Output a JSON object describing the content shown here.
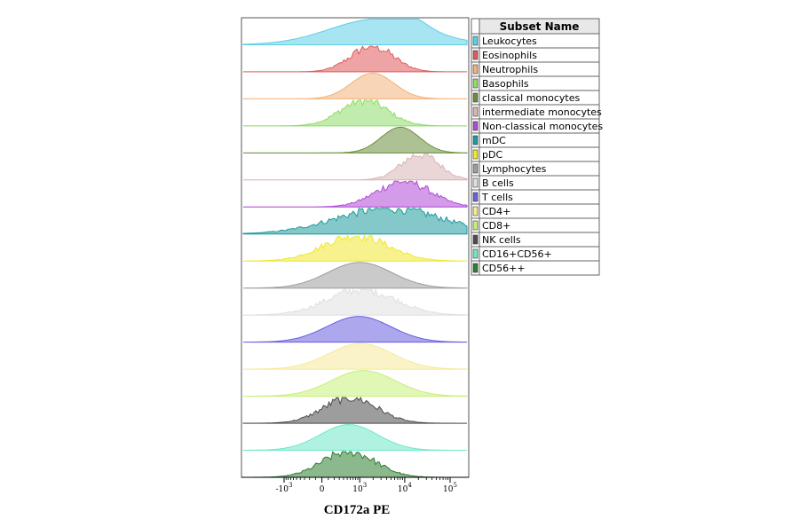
{
  "chart_data": {
    "type": "area",
    "xlabel": "CD172a PE",
    "x_scale": "biexponential",
    "x_ticks": [
      {
        "value": -1000,
        "base": "-10",
        "exp": "3"
      },
      {
        "value": 0,
        "base": "0",
        "exp": ""
      },
      {
        "value": 1000,
        "base": "10",
        "exp": "3"
      },
      {
        "value": 10000,
        "base": "10",
        "exp": "4"
      },
      {
        "value": 100000,
        "base": "10",
        "exp": "5"
      }
    ],
    "legend_title": "Subset Name",
    "legend_position": "right",
    "series": [
      {
        "name": "Leukocytes",
        "color": "#5ccfe6",
        "peaks": [
          {
            "center": 2500,
            "amp": 1.0,
            "width": 0.45
          },
          {
            "center": 13000,
            "amp": 0.35,
            "width": 0.15
          }
        ],
        "style": "smooth"
      },
      {
        "name": "Eosinophils",
        "color": "#e05a5a",
        "peaks": [
          {
            "center": 1900,
            "amp": 1.0,
            "width": 0.2
          }
        ],
        "style": "noisy"
      },
      {
        "name": "Neutrophils",
        "color": "#f2b27a",
        "peaks": [
          {
            "center": 1950,
            "amp": 1.0,
            "width": 0.2
          }
        ],
        "style": "smooth"
      },
      {
        "name": "Basophils",
        "color": "#8fdc6a",
        "peaks": [
          {
            "center": 1250,
            "amp": 1.0,
            "width": 0.22
          }
        ],
        "style": "noisy"
      },
      {
        "name": "classical monocytes",
        "color": "#6b8e3e",
        "peaks": [
          {
            "center": 8000,
            "amp": 1.0,
            "width": 0.18
          }
        ],
        "style": "smooth"
      },
      {
        "name": "intermediate monocytes",
        "color": "#d9b5b5",
        "peaks": [
          {
            "center": 22000,
            "amp": 1.0,
            "width": 0.18
          }
        ],
        "style": "noisy"
      },
      {
        "name": "Non-classical monocytes",
        "color": "#b04ad6",
        "peaks": [
          {
            "center": 9500,
            "amp": 1.0,
            "width": 0.25
          }
        ],
        "style": "noisy"
      },
      {
        "name": "mDC",
        "color": "#1f9a9e",
        "peaks": [
          {
            "center": 4500,
            "amp": 1.0,
            "width": 0.5
          }
        ],
        "style": "noisy"
      },
      {
        "name": "pDC",
        "color": "#f0e830",
        "peaks": [
          {
            "center": 800,
            "amp": 1.0,
            "width": 0.3
          }
        ],
        "style": "noisy"
      },
      {
        "name": "Lymphocytes",
        "color": "#9e9e9e",
        "peaks": [
          {
            "center": 1000,
            "amp": 1.0,
            "width": 0.3
          }
        ],
        "style": "smooth"
      },
      {
        "name": "B cells",
        "color": "#e0e0e0",
        "peaks": [
          {
            "center": 1100,
            "amp": 1.0,
            "width": 0.32
          }
        ],
        "style": "noisy"
      },
      {
        "name": "T cells",
        "color": "#6a5fe0",
        "peaks": [
          {
            "center": 950,
            "amp": 1.0,
            "width": 0.3
          }
        ],
        "style": "smooth"
      },
      {
        "name": "CD4+",
        "color": "#f5ea9a",
        "peaks": [
          {
            "center": 1050,
            "amp": 1.0,
            "width": 0.3
          }
        ],
        "style": "smooth"
      },
      {
        "name": "CD8+",
        "color": "#c6f07a",
        "peaks": [
          {
            "center": 1200,
            "amp": 1.0,
            "width": 0.3
          }
        ],
        "style": "smooth"
      },
      {
        "name": "NK cells",
        "color": "#4d4d4d",
        "peaks": [
          {
            "center": 600,
            "amp": 1.0,
            "width": 0.25
          }
        ],
        "style": "noisy"
      },
      {
        "name": "CD16+CD56+",
        "color": "#6ee8c8",
        "peaks": [
          {
            "center": 550,
            "amp": 1.0,
            "width": 0.27
          }
        ],
        "style": "smooth"
      },
      {
        "name": "CD56++",
        "color": "#2e7d32",
        "peaks": [
          {
            "center": 550,
            "amp": 1.0,
            "width": 0.25
          }
        ],
        "style": "noisy"
      }
    ]
  }
}
